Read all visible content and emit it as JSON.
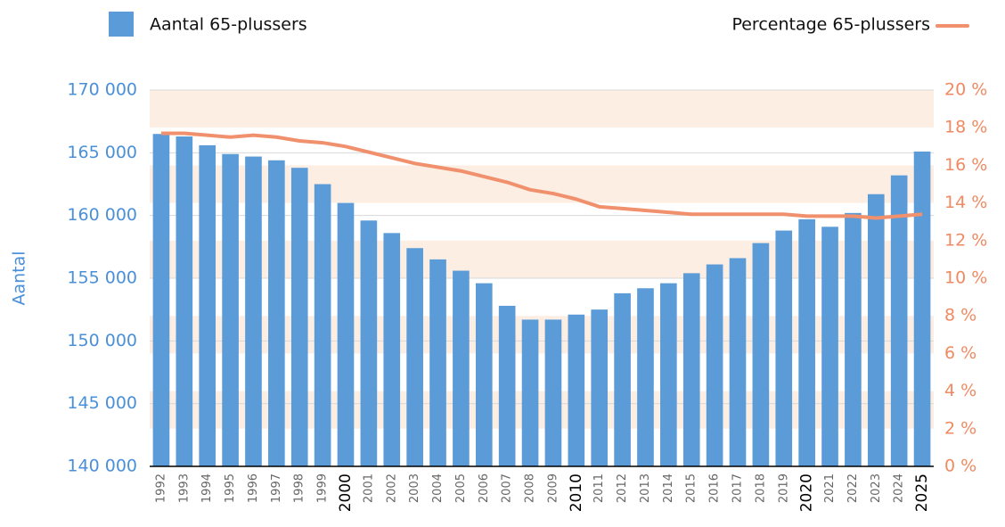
{
  "chart_data": {
    "type": "bar_line",
    "y_label": "Aantal",
    "categories": [
      "1992",
      "1993",
      "1994",
      "1995",
      "1996",
      "1997",
      "1998",
      "1999",
      "2000",
      "2001",
      "2002",
      "2003",
      "2004",
      "2005",
      "2006",
      "2007",
      "2008",
      "2009",
      "2010",
      "2011",
      "2012",
      "2013",
      "2014",
      "2015",
      "2016",
      "2017",
      "2018",
      "2019",
      "2020",
      "2021",
      "2022",
      "2023",
      "2024",
      "2025"
    ],
    "emphasized_categories": [
      "2000",
      "2010",
      "2020",
      "2025"
    ],
    "series": [
      {
        "name": "Aantal 65-plussers",
        "color": "#5a9bd8",
        "kind": "bar",
        "values": [
          166500,
          166300,
          165600,
          164900,
          164700,
          164400,
          163800,
          162500,
          161000,
          159600,
          158600,
          157400,
          156500,
          155600,
          154600,
          152800,
          151700,
          151700,
          152100,
          152500,
          153800,
          154200,
          154600,
          155400,
          156100,
          156600,
          157800,
          158800,
          159700,
          159100,
          160200,
          161700,
          163200,
          165100
        ]
      },
      {
        "name": "Percentage 65-plussers",
        "color": "#f0906c",
        "kind": "line",
        "axis": "y2",
        "values": [
          17.7,
          17.7,
          17.6,
          17.5,
          17.6,
          17.5,
          17.3,
          17.2,
          17.0,
          16.7,
          16.4,
          16.1,
          15.9,
          15.7,
          15.4,
          15.1,
          14.7,
          14.5,
          14.2,
          13.8,
          13.7,
          13.6,
          13.5,
          13.4,
          13.4,
          13.4,
          13.4,
          13.4,
          13.3,
          13.3,
          13.3,
          13.2,
          13.3,
          13.4
        ]
      }
    ],
    "ylim": [
      140000,
      170000
    ],
    "yticks": [
      {
        "value": 140000,
        "label": "140 000"
      },
      {
        "value": 145000,
        "label": "145 000"
      },
      {
        "value": 150000,
        "label": "150 000"
      },
      {
        "value": 155000,
        "label": "155 000"
      },
      {
        "value": 160000,
        "label": "160 000"
      },
      {
        "value": 165000,
        "label": "165 000"
      },
      {
        "value": 170000,
        "label": "170 000"
      }
    ],
    "y2lim": [
      0,
      20
    ],
    "y2ticks": [
      {
        "value": 0,
        "label": "0 %"
      },
      {
        "value": 2,
        "label": "2 %"
      },
      {
        "value": 4,
        "label": "4 %"
      },
      {
        "value": 6,
        "label": "6 %"
      },
      {
        "value": 8,
        "label": "8 %"
      },
      {
        "value": 10,
        "label": "10 %"
      },
      {
        "value": 12,
        "label": "12 %"
      },
      {
        "value": 14,
        "label": "14 %"
      },
      {
        "value": 16,
        "label": "16 %"
      },
      {
        "value": 18,
        "label": "18 %"
      },
      {
        "value": 20,
        "label": "20 %"
      }
    ],
    "grid": true
  }
}
